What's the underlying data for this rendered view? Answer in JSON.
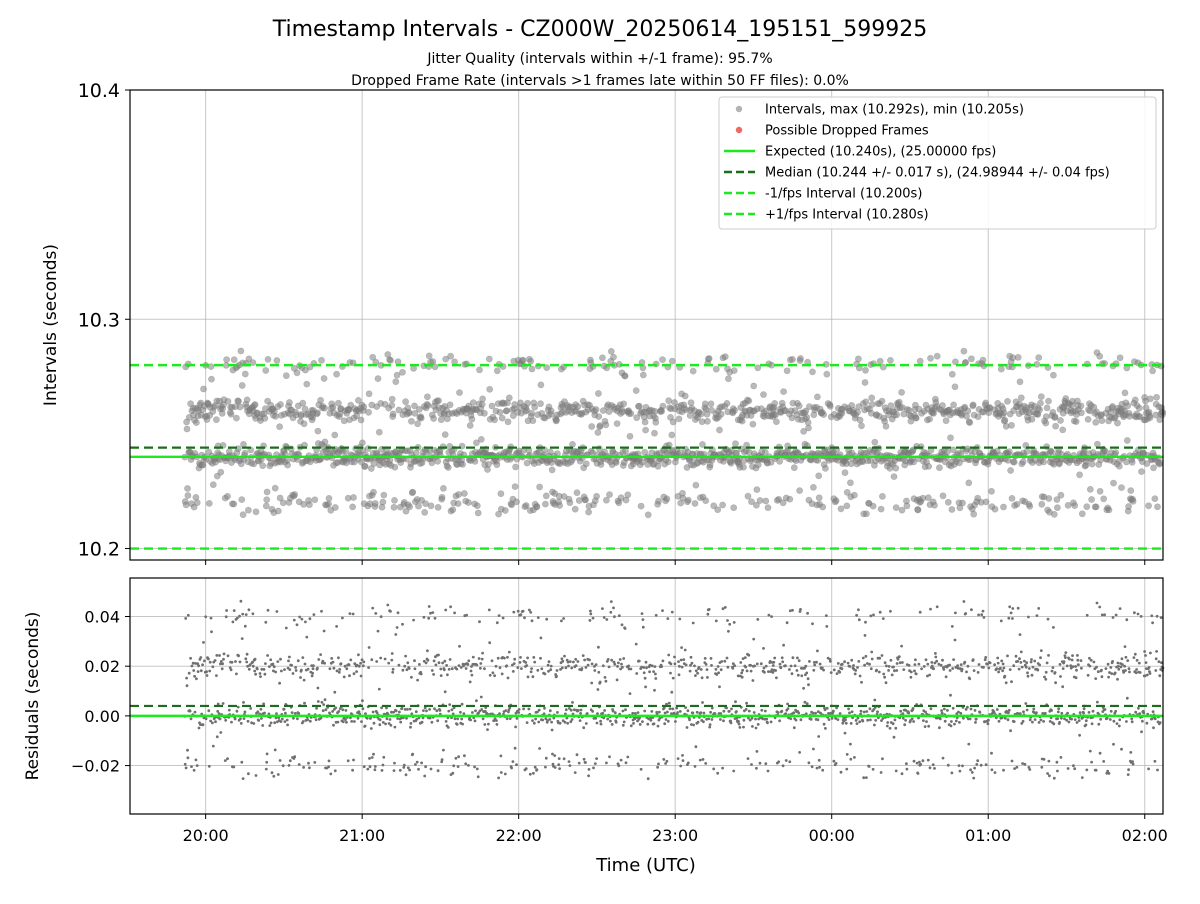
{
  "title": "Timestamp Intervals - CZ000W_20250614_195151_599925",
  "subtitle_lines": [
    "Jitter Quality (intervals within +/-1 frame): 95.7%",
    "Dropped Frame Rate (intervals >1 frames late within 50 FF files): 0.0%"
  ],
  "colors": {
    "points": "#808080",
    "dropped": "#e8453c",
    "expected": "#1ee81e",
    "median": "#1a6e1a",
    "bounds": "#1ee81e",
    "grid": "#b0b0b0"
  },
  "chart_data": [
    {
      "type": "scatter",
      "xlabel": "",
      "ylabel": "Intervals (seconds)",
      "x_range": [
        "19:31",
        "02:07"
      ],
      "ylim": [
        10.195,
        10.4
      ],
      "yticks": [
        "10.2",
        "10.3",
        "10.4"
      ],
      "grid": true,
      "legend_position": "top-right",
      "legend": [
        {
          "label": "Intervals, max (10.292s), min (10.205s)",
          "kind": "point",
          "color": "#a0a0a0"
        },
        {
          "label": "Possible Dropped Frames",
          "kind": "point",
          "color": "#e8453c"
        },
        {
          "label": "Expected (10.240s), (25.00000 fps)",
          "kind": "solid",
          "color": "#1ee81e"
        },
        {
          "label": "Median (10.244 +/- 0.017 s), (24.98944 +/- 0.04 fps)",
          "kind": "dashed",
          "color": "#1a6e1a"
        },
        {
          "label": "-1/fps Interval (10.200s)",
          "kind": "dashed",
          "color": "#1ee81e"
        },
        {
          "label": "+1/fps Interval (10.280s)",
          "kind": "dashed",
          "color": "#1ee81e"
        }
      ],
      "reference_lines": {
        "expected": 10.24,
        "median": 10.244,
        "minus_1_fps": 10.2,
        "plus_1_fps": 10.28
      },
      "series": [
        {
          "label_ref": "Intervals, max (10.292s), min (10.205s)",
          "x_start": "19:52",
          "x_end": "02:07",
          "interval_s": 10.24,
          "max": 10.292,
          "min": 10.205,
          "cluster_levels": [
            10.22,
            10.24,
            10.26,
            10.28
          ]
        }
      ]
    },
    {
      "type": "scatter",
      "xlabel": "Time (UTC)",
      "ylabel": "Residuals (seconds)",
      "x_range": [
        "19:31",
        "02:07"
      ],
      "xticks": [
        "20:00",
        "21:00",
        "22:00",
        "23:00",
        "00:00",
        "01:00",
        "02:00"
      ],
      "ylim": [
        -0.0395,
        0.0555
      ],
      "yticks": [
        "0.04",
        "0.02",
        "0.00",
        "−0.02"
      ],
      "ytick_values": [
        0.04,
        0.02,
        0.0,
        -0.02
      ],
      "grid": true,
      "reference_lines": {
        "zero": 0.0,
        "median_offset": 0.004
      },
      "series": [
        {
          "x_start": "19:52",
          "x_end": "02:07",
          "max": 0.052,
          "min": -0.035,
          "cluster_levels": [
            -0.02,
            0.0,
            0.02,
            0.04
          ]
        }
      ]
    }
  ]
}
